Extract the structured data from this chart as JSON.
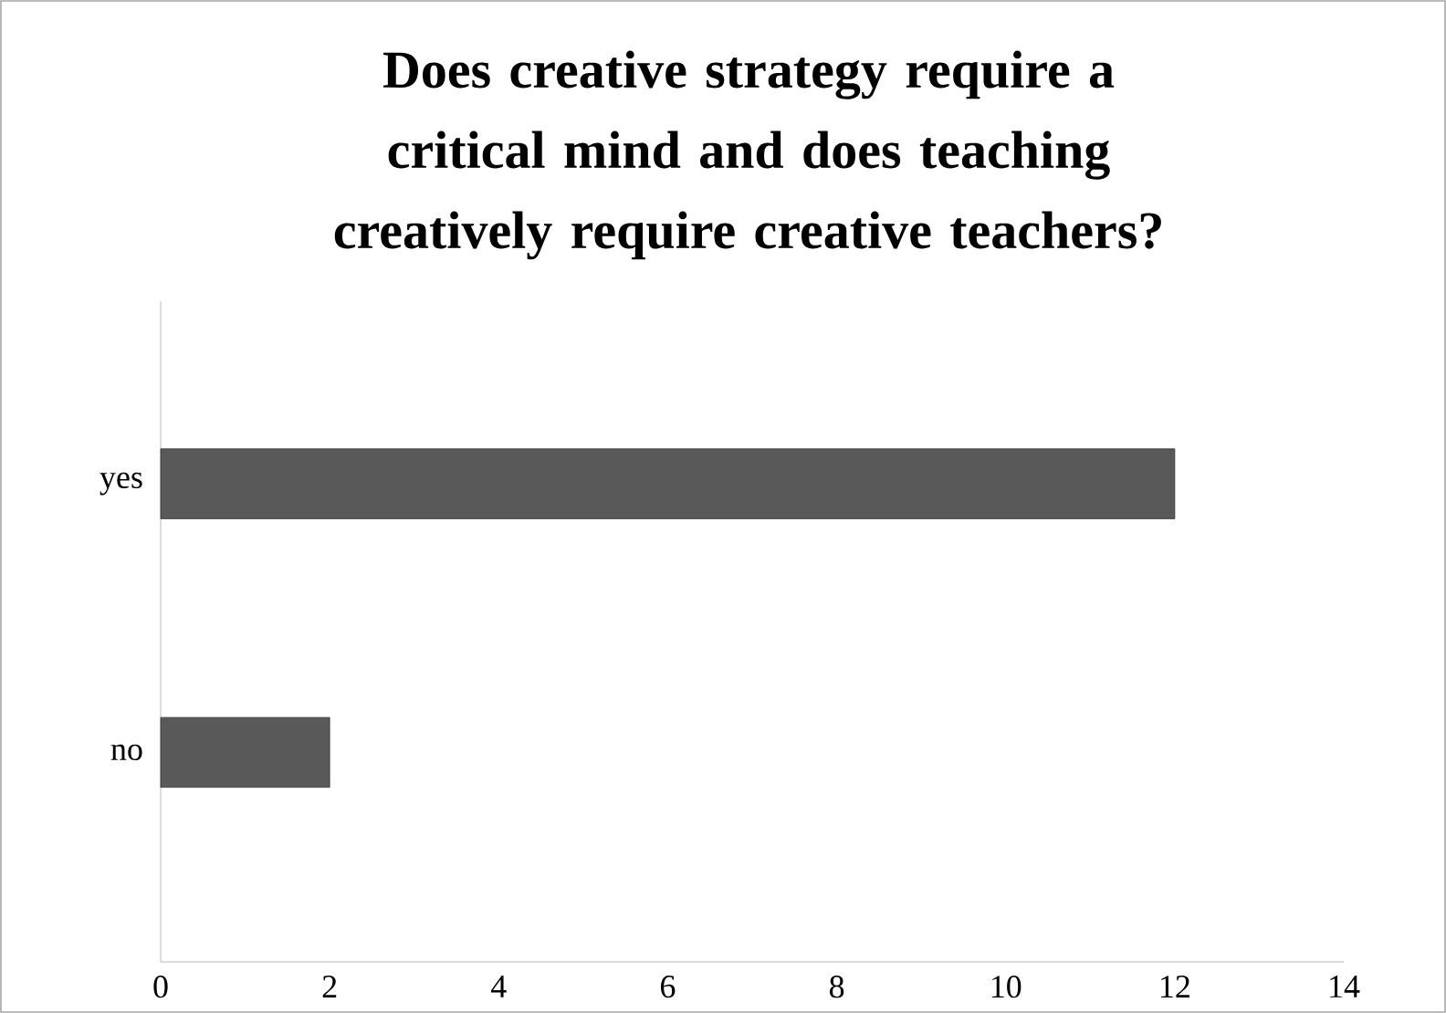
{
  "chart_data": {
    "type": "bar",
    "orientation": "horizontal",
    "title": "Does creative strategy require a critical mind and does teaching creatively require creative teachers?",
    "categories": [
      "yes",
      "no"
    ],
    "values": [
      12,
      2
    ],
    "color": "#595959",
    "xlim": [
      0,
      14
    ],
    "xticks": [
      0,
      2,
      4,
      6,
      8,
      10,
      12,
      14
    ]
  }
}
